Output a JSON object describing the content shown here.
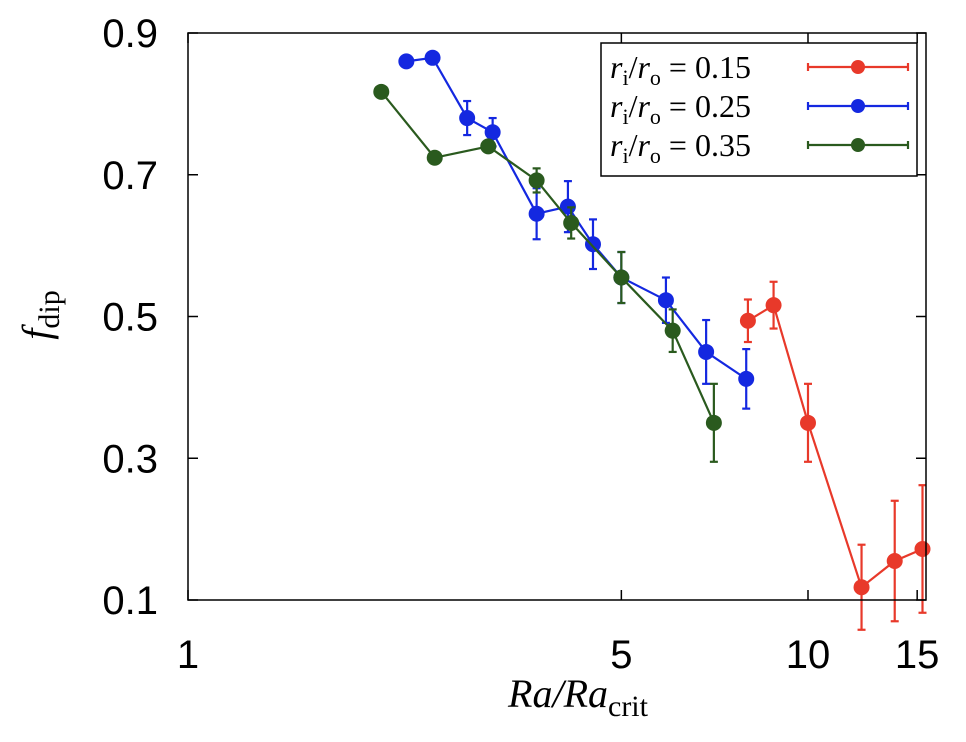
{
  "chart_data": {
    "type": "line",
    "xlabel": {
      "main": "Ra/Ra",
      "sub": "crit"
    },
    "ylabel": {
      "main": "f",
      "sub": "dip"
    },
    "xscale": "log",
    "xlim": [
      1,
      15.5
    ],
    "ylim": [
      0.1,
      0.9
    ],
    "xticks": [
      {
        "value": 1,
        "label": "1"
      },
      {
        "value": 5,
        "label": "5"
      },
      {
        "value": 10,
        "label": "10"
      },
      {
        "value": 15,
        "label": "15"
      }
    ],
    "yticks": [
      {
        "value": 0.1,
        "label": "0.1"
      },
      {
        "value": 0.3,
        "label": "0.3"
      },
      {
        "value": 0.5,
        "label": "0.5"
      },
      {
        "value": 0.7,
        "label": "0.7"
      },
      {
        "value": 0.9,
        "label": "0.9"
      }
    ],
    "grid": false,
    "legend_position": "top-right",
    "series": [
      {
        "legend": {
          "prefix": "r",
          "sub1": "i",
          "mid": "/r",
          "sub2": "o",
          "value": " = 0.15"
        },
        "color": "#e8392a",
        "x": [
          8.0,
          8.8,
          10.0,
          12.2,
          13.8,
          15.3
        ],
        "y": [
          0.494,
          0.516,
          0.35,
          0.118,
          0.155,
          0.172
        ],
        "err": [
          0.03,
          0.033,
          0.055,
          0.06,
          0.085,
          0.09
        ]
      },
      {
        "legend": {
          "prefix": "r",
          "sub1": "i",
          "mid": "/r",
          "sub2": "o",
          "value": " = 0.25"
        },
        "color": "#1428e0",
        "x": [
          2.25,
          2.48,
          2.82,
          3.1,
          3.65,
          4.1,
          4.5,
          5.0,
          5.9,
          6.85,
          7.95
        ],
        "y": [
          0.86,
          0.865,
          0.78,
          0.76,
          0.645,
          0.655,
          0.602,
          0.555,
          0.523,
          0.45,
          0.412
        ],
        "err": [
          0,
          0,
          0.024,
          0.02,
          0.036,
          0.036,
          0.035,
          0.036,
          0.032,
          0.045,
          0.042
        ]
      },
      {
        "legend": {
          "prefix": "r",
          "sub1": "i",
          "mid": "/r",
          "sub2": "o",
          "value": " = 0.35"
        },
        "color": "#2a5a1e",
        "x": [
          2.05,
          2.5,
          3.05,
          3.65,
          4.15,
          5.0,
          6.05,
          7.05
        ],
        "y": [
          0.817,
          0.724,
          0.74,
          0.692,
          0.632,
          0.555,
          0.48,
          0.35
        ],
        "err": [
          0,
          0,
          0,
          0.017,
          0.022,
          0.036,
          0.03,
          0.055
        ]
      }
    ]
  }
}
